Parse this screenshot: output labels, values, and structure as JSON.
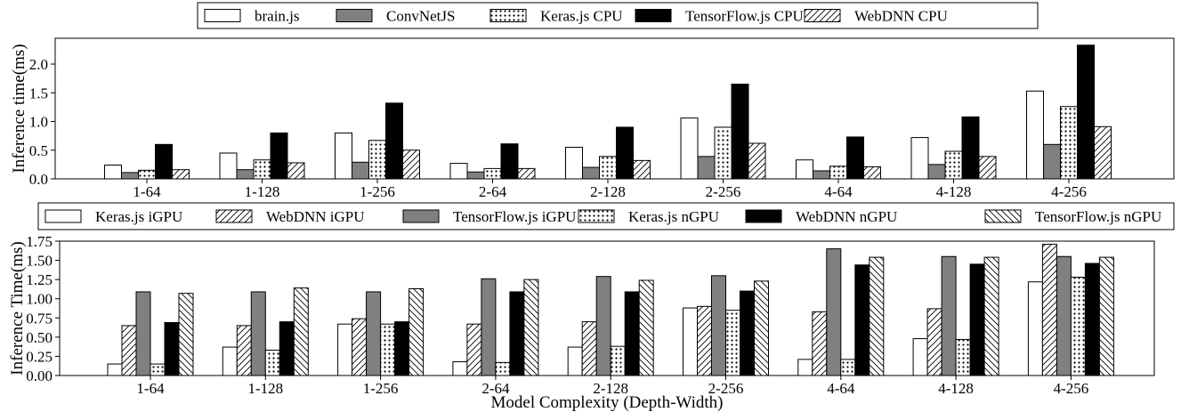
{
  "chart_data": [
    {
      "type": "bar",
      "ylabel": "Inference time(ms)",
      "xlabel": "",
      "ylim": [
        0,
        2.45
      ],
      "yticks": [
        "0.0",
        "0.5",
        "1.0",
        "1.5",
        "2.0"
      ],
      "categories": [
        "1-64",
        "1-128",
        "1-256",
        "2-64",
        "2-128",
        "2-256",
        "4-64",
        "4-128",
        "4-256"
      ],
      "legend_position": "top",
      "series": [
        {
          "name": "brain.js",
          "pattern": "white",
          "values": [
            0.24,
            0.45,
            0.8,
            0.27,
            0.55,
            1.06,
            0.33,
            0.72,
            1.53
          ]
        },
        {
          "name": "ConvNetJS",
          "pattern": "gray",
          "values": [
            0.11,
            0.16,
            0.29,
            0.12,
            0.2,
            0.39,
            0.14,
            0.25,
            0.6
          ]
        },
        {
          "name": "Keras.js CPU",
          "pattern": "dots",
          "values": [
            0.15,
            0.33,
            0.67,
            0.18,
            0.39,
            0.9,
            0.22,
            0.48,
            1.26
          ]
        },
        {
          "name": "TensorFlow.js CPU",
          "pattern": "black",
          "values": [
            0.6,
            0.8,
            1.32,
            0.61,
            0.9,
            1.65,
            0.73,
            1.08,
            2.33
          ]
        },
        {
          "name": "WebDNN CPU",
          "pattern": "diag",
          "values": [
            0.16,
            0.28,
            0.5,
            0.18,
            0.32,
            0.62,
            0.21,
            0.39,
            0.91
          ]
        }
      ]
    },
    {
      "type": "bar",
      "ylabel": "Inference Time(ms)",
      "xlabel": "Model Complexity (Depth-Width)",
      "ylim": [
        0,
        1.75
      ],
      "yticks": [
        "0.00",
        "0.25",
        "0.50",
        "0.75",
        "1.00",
        "1.25",
        "1.50",
        "1.75"
      ],
      "categories": [
        "1-64",
        "1-128",
        "1-256",
        "2-64",
        "2-128",
        "2-256",
        "4-64",
        "4-128",
        "4-256"
      ],
      "legend_position": "top",
      "series": [
        {
          "name": "Keras.js iGPU",
          "pattern": "white",
          "values": [
            0.15,
            0.37,
            0.67,
            0.18,
            0.37,
            0.88,
            0.21,
            0.48,
            1.22
          ]
        },
        {
          "name": "WebDNN iGPU",
          "pattern": "diag",
          "values": [
            0.65,
            0.65,
            0.74,
            0.67,
            0.7,
            0.9,
            0.83,
            0.87,
            1.71
          ]
        },
        {
          "name": "TensorFlow.js iGPU",
          "pattern": "gray",
          "values": [
            1.09,
            1.09,
            1.09,
            1.26,
            1.29,
            1.3,
            1.65,
            1.55,
            1.55
          ]
        },
        {
          "name": "Keras.js nGPU",
          "pattern": "dots",
          "values": [
            0.15,
            0.33,
            0.67,
            0.17,
            0.38,
            0.85,
            0.21,
            0.47,
            1.28
          ]
        },
        {
          "name": "WebDNN nGPU",
          "pattern": "black",
          "values": [
            0.69,
            0.7,
            0.7,
            1.09,
            1.09,
            1.1,
            1.44,
            1.45,
            1.46
          ]
        },
        {
          "name": "TensorFlow.js nGPU",
          "pattern": "backdiag",
          "values": [
            1.07,
            1.14,
            1.13,
            1.25,
            1.24,
            1.23,
            1.54,
            1.54,
            1.54
          ]
        }
      ]
    }
  ]
}
